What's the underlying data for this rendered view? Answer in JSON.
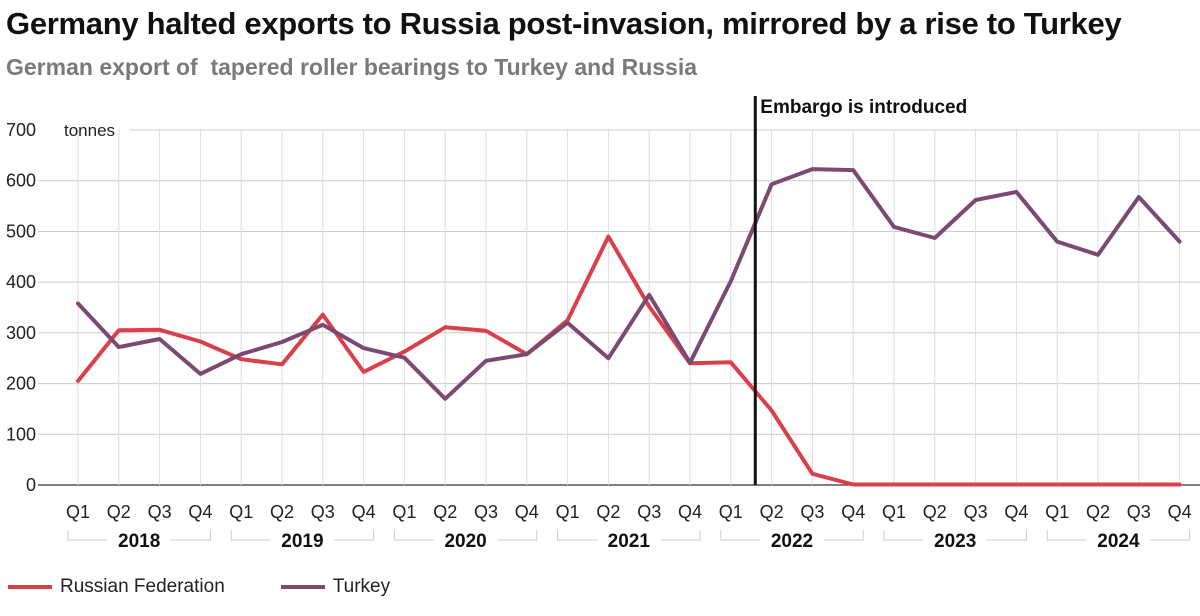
{
  "chart_data": {
    "type": "line",
    "title": "Germany halted exports to Russia post-invasion, mirrored by a rise to Turkey",
    "subtitle": "German export of  tapered roller bearings to Turkey and Russia",
    "ylabel": "tonnes",
    "xlabel": "",
    "ylim": [
      0,
      700
    ],
    "yticks": [
      0,
      100,
      200,
      300,
      400,
      500,
      600,
      700
    ],
    "grid": true,
    "legend_position": "bottom-left",
    "categories": [
      "Q1",
      "Q2",
      "Q3",
      "Q4",
      "Q1",
      "Q2",
      "Q3",
      "Q4",
      "Q1",
      "Q2",
      "Q3",
      "Q4",
      "Q1",
      "Q2",
      "Q3",
      "Q4",
      "Q1",
      "Q2",
      "Q3",
      "Q4",
      "Q1",
      "Q2",
      "Q3",
      "Q4",
      "Q1",
      "Q2",
      "Q3",
      "Q4"
    ],
    "years": [
      "2018",
      "2019",
      "2020",
      "2021",
      "2022",
      "2023",
      "2024"
    ],
    "series": [
      {
        "name": "Russian Federation",
        "color": "#d9404b",
        "values": [
          205,
          305,
          306,
          283,
          248,
          238,
          336,
          223,
          263,
          311,
          304,
          258,
          325,
          490,
          352,
          240,
          242,
          147,
          22,
          1,
          1,
          1,
          1,
          1,
          1,
          1,
          1,
          1
        ]
      },
      {
        "name": "Turkey",
        "color": "#7b4a70",
        "values": [
          358,
          272,
          288,
          219,
          258,
          282,
          316,
          270,
          251,
          170,
          245,
          258,
          320,
          250,
          375,
          241,
          402,
          593,
          623,
          621,
          509,
          487,
          562,
          578,
          480,
          454,
          568,
          480
        ]
      }
    ],
    "annotations": [
      {
        "label": "Embargo is introduced",
        "x_position_quarter_index": 16.6
      }
    ]
  }
}
